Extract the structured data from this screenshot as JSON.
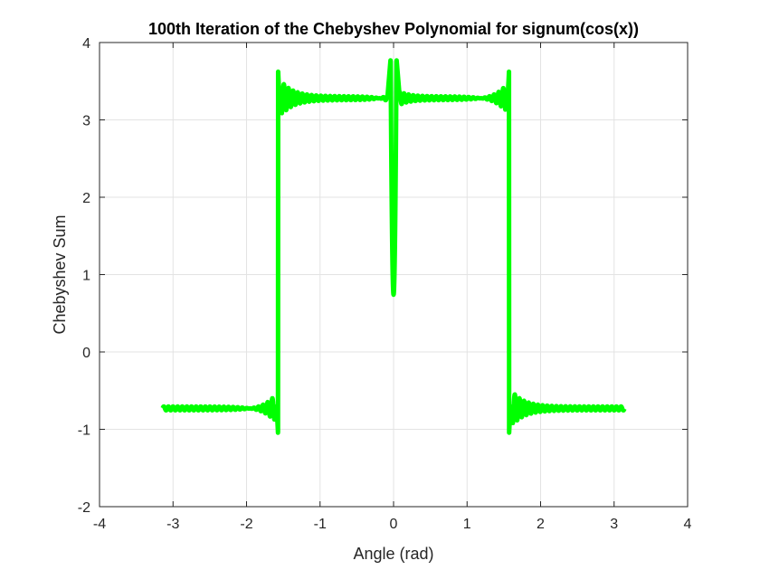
{
  "chart_data": {
    "type": "line",
    "title": "100th Iteration of the Chebyshev Polynomial for signum(cos(x))",
    "xlabel": "Angle (rad)",
    "ylabel": "Chebyshev Sum",
    "xlim": [
      -4,
      4
    ],
    "ylim": [
      -2,
      4
    ],
    "xticks": [
      -4,
      -3,
      -2,
      -1,
      0,
      1,
      2,
      3,
      4
    ],
    "yticks": [
      -2,
      -1,
      0,
      1,
      2,
      3,
      4
    ],
    "xtick_labels": [
      "-4",
      "-3",
      "-2",
      "-1",
      "0",
      "1",
      "2",
      "3",
      "4"
    ],
    "ytick_labels": [
      "-2",
      "-1",
      "0",
      "1",
      "2",
      "3",
      "4"
    ],
    "grid": true,
    "legend": false,
    "series": [
      {
        "color": "#00ff00",
        "x_range": [
          -3.14,
          3.14
        ],
        "low_level": -0.73,
        "high_level": 3.28,
        "step_edges": [
          -1.5708,
          1.5708
        ],
        "edge_peak": 3.64,
        "edge_trough": -1.07,
        "center_peaks": [
          3.8,
          3.78
        ],
        "center_dip": 0.74
      }
    ]
  }
}
